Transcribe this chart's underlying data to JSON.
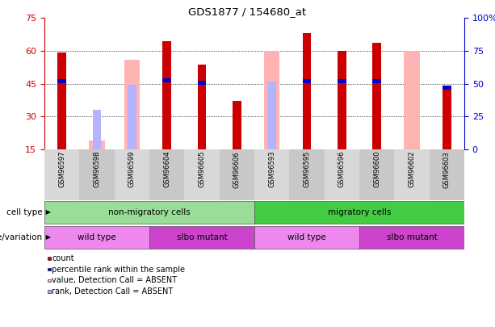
{
  "title": "GDS1877 / 154680_at",
  "samples": [
    "GSM96597",
    "GSM96598",
    "GSM96599",
    "GSM96604",
    "GSM96605",
    "GSM96606",
    "GSM96593",
    "GSM96595",
    "GSM96596",
    "GSM96600",
    "GSM96602",
    "GSM96603"
  ],
  "count_values": [
    59.0,
    null,
    null,
    64.5,
    53.5,
    37.0,
    null,
    68.0,
    60.0,
    63.5,
    null,
    44.0
  ],
  "percentile_values": [
    46.0,
    null,
    null,
    46.5,
    45.5,
    null,
    null,
    46.0,
    46.0,
    46.0,
    null,
    43.0
  ],
  "absent_value_bars": [
    null,
    19.0,
    56.0,
    null,
    null,
    null,
    60.0,
    null,
    null,
    null,
    60.0,
    null
  ],
  "absent_rank_bars": [
    null,
    33.0,
    44.5,
    null,
    null,
    null,
    46.0,
    null,
    null,
    null,
    null,
    null
  ],
  "ylim": [
    15,
    75
  ],
  "yticks": [
    15,
    30,
    45,
    60,
    75
  ],
  "right_yticks_pct": [
    0,
    25,
    50,
    75,
    100
  ],
  "right_ytick_labels": [
    "0",
    "25",
    "50",
    "75",
    "100%"
  ],
  "color_count": "#cc0000",
  "color_percentile": "#0000cc",
  "color_absent_value": "#ffb3b3",
  "color_absent_rank": "#b3b3ff",
  "cell_type_groups": [
    {
      "label": "non-migratory cells",
      "start": 0,
      "end": 6,
      "color": "#99dd99"
    },
    {
      "label": "migratory cells",
      "start": 6,
      "end": 12,
      "color": "#44cc44"
    }
  ],
  "genotype_groups": [
    {
      "label": "wild type",
      "start": 0,
      "end": 3,
      "color": "#ee88ee"
    },
    {
      "label": "slbo mutant",
      "start": 3,
      "end": 6,
      "color": "#cc44cc"
    },
    {
      "label": "wild type",
      "start": 6,
      "end": 9,
      "color": "#ee88ee"
    },
    {
      "label": "slbo mutant",
      "start": 9,
      "end": 12,
      "color": "#cc44cc"
    }
  ],
  "legend_items": [
    {
      "color": "#cc0000",
      "label": "count"
    },
    {
      "color": "#0000cc",
      "label": "percentile rank within the sample"
    },
    {
      "color": "#ffb3b3",
      "label": "value, Detection Call = ABSENT"
    },
    {
      "color": "#b3b3ff",
      "label": "rank, Detection Call = ABSENT"
    }
  ]
}
